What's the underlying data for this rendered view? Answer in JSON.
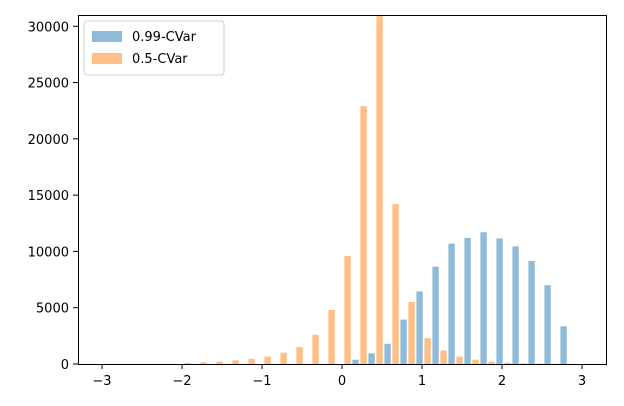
{
  "chart_data": {
    "type": "bar",
    "title": "",
    "xlabel": "",
    "ylabel": "",
    "xlim": [
      -3.3,
      3.3
    ],
    "ylim": [
      0,
      31000
    ],
    "xticks": [
      -3,
      -2,
      -1,
      0,
      1,
      2,
      3
    ],
    "xtick_labels": [
      "−3",
      "−2",
      "−1",
      "0",
      "1",
      "2",
      "3"
    ],
    "yticks": [
      0,
      5000,
      10000,
      15000,
      20000,
      25000,
      30000
    ],
    "ytick_labels": [
      "0",
      "5000",
      "10000",
      "15000",
      "20000",
      "25000",
      "30000"
    ],
    "grid": false,
    "legend": "top-left",
    "bin_width": 0.2,
    "bar_width": 0.08,
    "series": [
      {
        "name": "0.99-CVar",
        "color": "#1f77b4",
        "opacity": 0.5,
        "x": [
          -3.03,
          -2.83,
          -2.63,
          -2.43,
          -2.23,
          -2.03,
          -1.83,
          -1.63,
          -1.43,
          -1.23,
          -1.03,
          -0.83,
          -0.63,
          -0.43,
          -0.23,
          -0.03,
          0.17,
          0.37,
          0.57,
          0.77,
          0.97,
          1.17,
          1.37,
          1.57,
          1.77,
          1.97,
          2.17,
          2.37,
          2.57,
          2.77
        ],
        "values": [
          0,
          0,
          0,
          0,
          0,
          0,
          0,
          0,
          0,
          0,
          0,
          0,
          0,
          0,
          0,
          0,
          380,
          950,
          1800,
          3950,
          6450,
          8650,
          10700,
          11200,
          11700,
          11150,
          10450,
          9150,
          7000,
          3350
        ]
      },
      {
        "name": "0.5-CVar",
        "color": "#ff7f0e",
        "opacity": 0.5,
        "x": [
          -2.93,
          -2.73,
          -2.53,
          -2.33,
          -2.13,
          -1.93,
          -1.73,
          -1.53,
          -1.33,
          -1.13,
          -0.93,
          -0.73,
          -0.53,
          -0.33,
          -0.13,
          0.07,
          0.27,
          0.47,
          0.67,
          0.87,
          1.07,
          1.27,
          1.47,
          1.67,
          1.87,
          2.07,
          2.27,
          2.47,
          2.67,
          2.87
        ],
        "values": [
          0,
          0,
          0,
          0,
          0,
          100,
          150,
          220,
          330,
          450,
          650,
          1000,
          1500,
          2600,
          4800,
          9600,
          22900,
          30900,
          14200,
          5500,
          2300,
          1200,
          650,
          380,
          220,
          120,
          70,
          40,
          20,
          0
        ]
      }
    ]
  }
}
